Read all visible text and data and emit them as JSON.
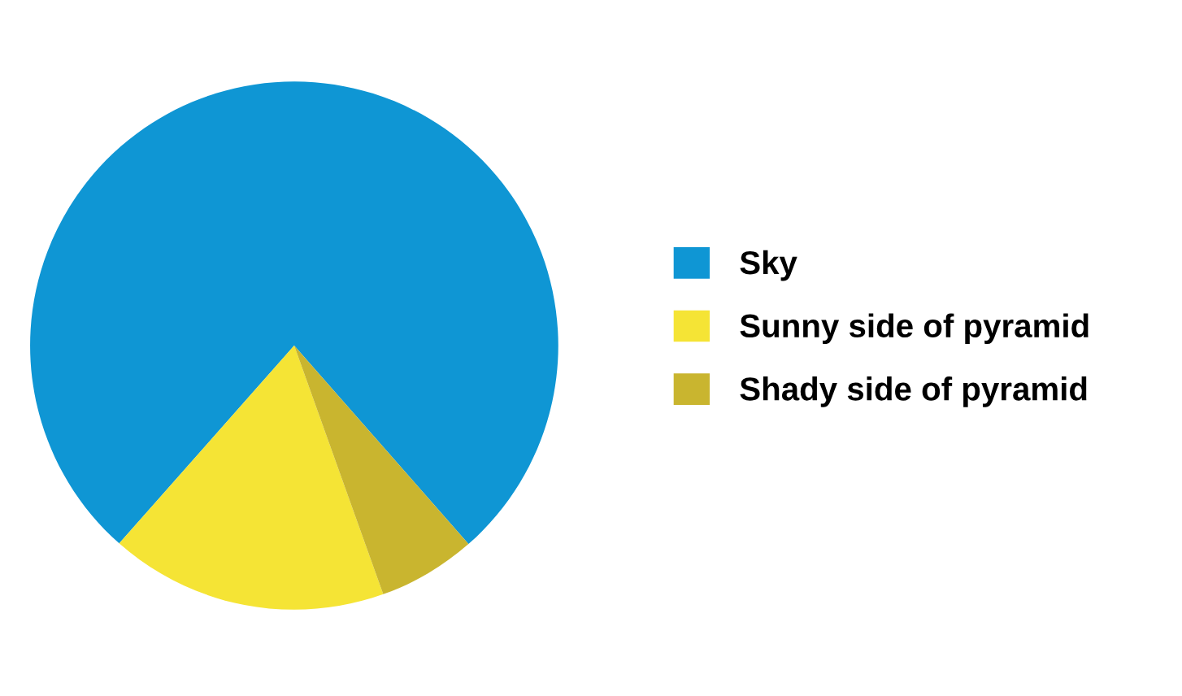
{
  "chart_data": {
    "type": "pie",
    "categories": [
      "Sky",
      "Sunny side of pyramid",
      "Shady side of pyramid"
    ],
    "values": [
      77,
      17,
      6
    ],
    "colors": [
      "#0f96d4",
      "#f5e435",
      "#c9b52f"
    ],
    "legend": "right"
  }
}
